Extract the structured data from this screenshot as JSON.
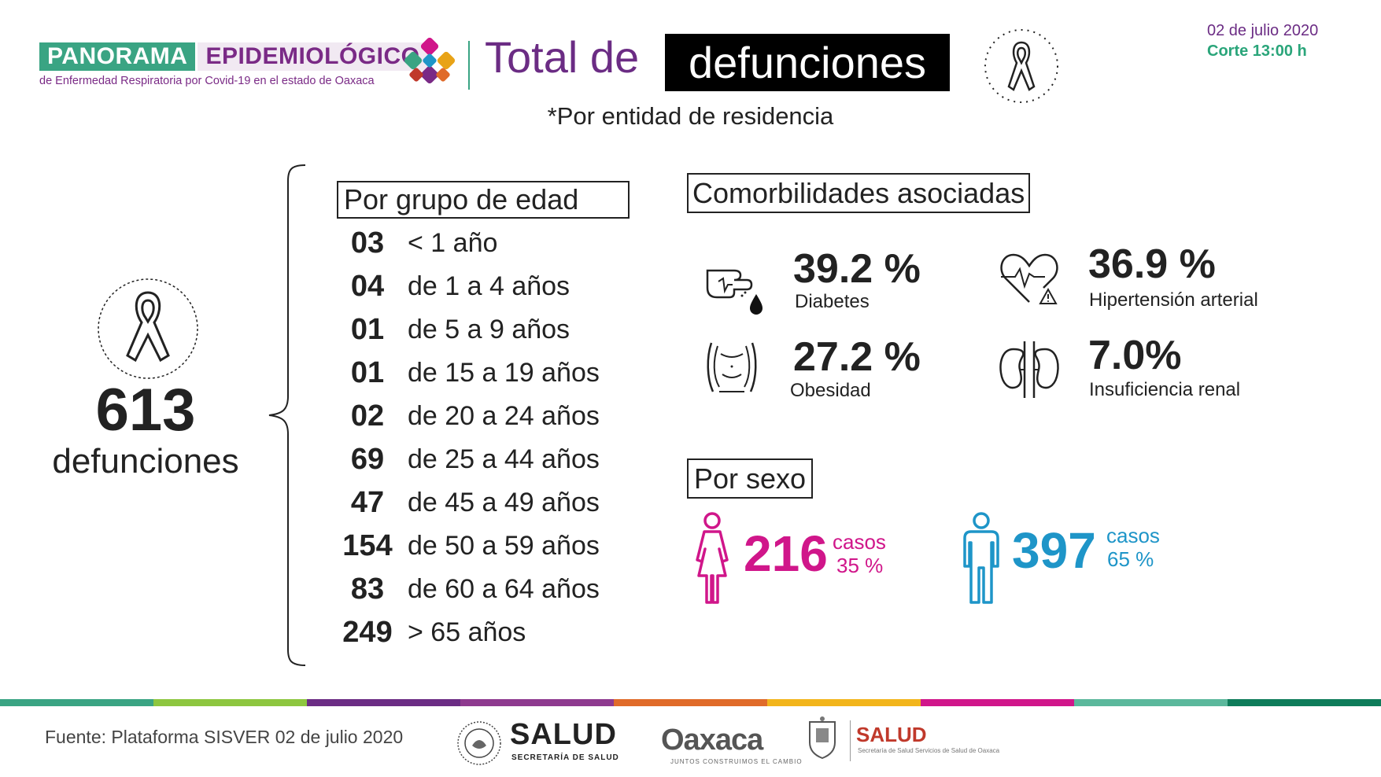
{
  "header": {
    "logo_primary": "PANORAMA",
    "logo_secondary": "EPIDEMIOLÓGICO",
    "logo_subtitle": "de Enfermedad Respiratoria por Covid-19 en el estado de Oaxaca",
    "title_part1": "Total de",
    "title_part2": "defunciones",
    "date": "02 de julio 2020",
    "cutoff": "Corte 13:00 h",
    "subtitle": "*Por entidad de residencia"
  },
  "colors": {
    "brand_green": "#3aa483",
    "brand_purple": "#6b2c84",
    "female": "#d0168a",
    "male": "#1e95c8"
  },
  "total": {
    "value": "613",
    "label": "defunciones"
  },
  "age_groups": {
    "title": "Por grupo de edad",
    "rows": [
      {
        "count": "03",
        "label": "< 1 año"
      },
      {
        "count": "04",
        "label": "de 1 a 4 años"
      },
      {
        "count": "01",
        "label": "de 5 a 9 años"
      },
      {
        "count": "01",
        "label": "de 15 a 19 años"
      },
      {
        "count": "02",
        "label": "de 20 a 24 años"
      },
      {
        "count": "69",
        "label": "de 25 a 44 años"
      },
      {
        "count": "47",
        "label": "de 45 a 49 años"
      },
      {
        "count": "154",
        "label": "de 50 a 59 años"
      },
      {
        "count": "83",
        "label": "de 60 a 64 años"
      },
      {
        "count": "249",
        "label": "> 65 años"
      }
    ]
  },
  "comorbidities": {
    "title": "Comorbilidades asociadas",
    "items": [
      {
        "value": "39.2 %",
        "label": "Diabetes",
        "icon": "diabetes-icon"
      },
      {
        "value": "36.9 %",
        "label": "Hipertensión arterial",
        "icon": "heart-icon"
      },
      {
        "value": "27.2 %",
        "label": "Obesidad",
        "icon": "obesity-icon"
      },
      {
        "value": "7.0%",
        "label": "Insuficiencia renal",
        "icon": "kidney-icon"
      }
    ]
  },
  "sex": {
    "title": "Por sexo",
    "female": {
      "count": "216",
      "casos": "casos",
      "pct": "35 %"
    },
    "male": {
      "count": "397",
      "casos": "casos",
      "pct": "65 %"
    }
  },
  "footer": {
    "source": "Fuente: Plataforma SISVER 02 de julio 2020",
    "salud": "SALUD",
    "salud_sub": "SECRETARÍA DE SALUD",
    "oaxaca": "Oaxaca",
    "oaxaca_sub": "JUNTOS CONSTRUIMOS EL CAMBIO",
    "salud2": "SALUD",
    "salud2_sub": "Secretaría de Salud Servicios de Salud de Oaxaca"
  }
}
